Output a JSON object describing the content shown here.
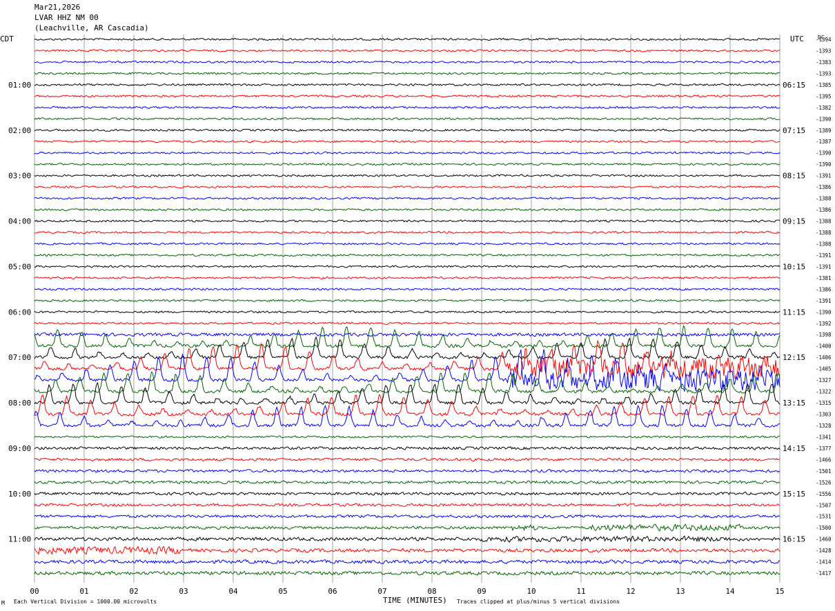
{
  "header": {
    "date": "Mar21,2026",
    "station": "LVAR HHZ NM 00",
    "location": "(Leachville, AR Cascadia)"
  },
  "left_zone_label": "CDT",
  "right_zone_label": "UTC",
  "dc_label": "DC",
  "footer": {
    "scale_note": "Each Vertical Division = 1000.00 microvolts",
    "xlabel": "TIME (MINUTES)",
    "clip_note": "Traces clipped at plus/minus 5 vertical divisions",
    "corner_mark": "M"
  },
  "colors": {
    "cycle": [
      "#000000",
      "#ff0000",
      "#0000ff",
      "#006400"
    ],
    "grid": "#888888"
  },
  "chart_data": {
    "type": "line",
    "title": "",
    "xlabel": "TIME (MINUTES)",
    "x_ticks": [
      "00",
      "01",
      "02",
      "03",
      "04",
      "05",
      "06",
      "07",
      "08",
      "09",
      "10",
      "11",
      "12",
      "13",
      "14",
      "15"
    ],
    "xlim": [
      0,
      15
    ],
    "traces_per_hour": 4,
    "trace_count": 48,
    "left_hour_labels": [
      "01:00",
      "02:00",
      "03:00",
      "04:00",
      "05:00",
      "06:00",
      "07:00",
      "08:00",
      "09:00",
      "10:00",
      "11:00"
    ],
    "right_hour_labels": [
      "06:15",
      "07:15",
      "08:15",
      "09:15",
      "10:15",
      "11:15",
      "12:15",
      "13:15",
      "14:15",
      "15:15",
      "16:15"
    ],
    "dc_offsets": [
      -1394,
      -1393,
      -1383,
      -1393,
      -1385,
      -1395,
      -1382,
      -1390,
      -1389,
      -1387,
      -1390,
      -1390,
      -1391,
      -1386,
      -1388,
      -1386,
      -1388,
      -1388,
      -1388,
      -1391,
      -1391,
      -1381,
      -1386,
      -1391,
      -1390,
      -1392,
      -1398,
      -1400,
      -1406,
      -1405,
      -1327,
      -1322,
      -1315,
      -1303,
      -1328,
      -1341,
      -1377,
      -1466,
      -1501,
      -1526,
      -1556,
      -1507,
      -1531,
      -1500,
      -1460,
      -1428,
      -1414,
      -1417
    ],
    "grid": true
  }
}
